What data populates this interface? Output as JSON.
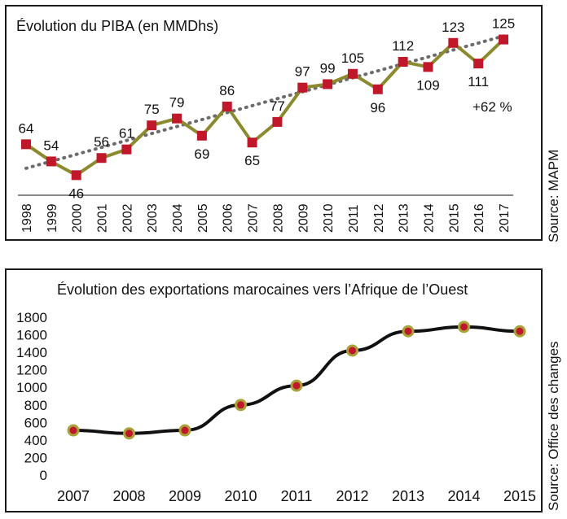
{
  "chart_data": [
    {
      "type": "line",
      "title": "Évolution du PIBA (en MMDhs)",
      "source": "Source: MAPM",
      "annotation": "+62 %",
      "categories": [
        "1998",
        "1999",
        "2000",
        "2001",
        "2002",
        "2003",
        "2004",
        "2005",
        "2006",
        "2007",
        "2008",
        "2009",
        "2010",
        "2011",
        "2012",
        "2013",
        "2014",
        "2015",
        "2016",
        "2017"
      ],
      "series": [
        {
          "values": [
            64,
            54,
            46,
            56,
            61,
            75,
            79,
            69,
            86,
            65,
            77,
            97,
            99,
            105,
            96,
            112,
            109,
            123,
            111,
            125
          ]
        }
      ],
      "trendline": {
        "style": "dotted",
        "color": "#6b6b6b",
        "start": 50,
        "end": 127
      },
      "ylim": [
        40,
        130
      ],
      "grid": false,
      "line_color": "#8c8a2e",
      "marker_color": "#c0182a",
      "marker": "square",
      "data_labels": true
    },
    {
      "type": "line",
      "title": "Évolution des exportations marocaines vers l’Afrique de l’Ouest",
      "source": "Source: Office des changes",
      "categories": [
        "2007",
        "2008",
        "2009",
        "2010",
        "2011",
        "2012",
        "2013",
        "2014",
        "2015"
      ],
      "series": [
        {
          "values": [
            510,
            475,
            510,
            800,
            1020,
            1420,
            1640,
            1690,
            1640
          ]
        }
      ],
      "y_ticks": [
        0,
        200,
        400,
        600,
        800,
        1000,
        1200,
        1400,
        1600,
        1800
      ],
      "ylim": [
        0,
        1800
      ],
      "grid": false,
      "line_color": "#111111",
      "marker_color": "#c0182a",
      "marker_edge": "#a8a23a",
      "marker": "circle"
    }
  ]
}
